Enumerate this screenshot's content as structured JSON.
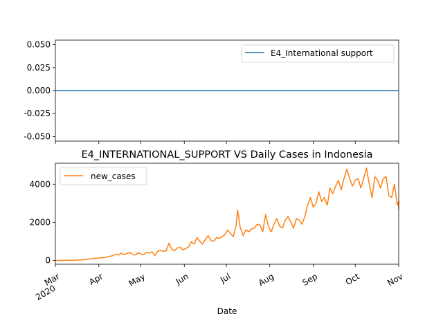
{
  "chart_data": [
    {
      "type": "line",
      "title": "",
      "xlabel": "",
      "ylabel": "",
      "ylim": [
        -0.055,
        0.055
      ],
      "yticks": [
        "0.050",
        "0.025",
        "0.000",
        "-0.025",
        "-0.050"
      ],
      "ytick_values": [
        0.05,
        0.025,
        0.0,
        -0.025,
        -0.05
      ],
      "legend_position": "upper right",
      "series": [
        {
          "name": "E4_International support",
          "color": "#1f77b4",
          "constant_value": 0.0
        }
      ]
    },
    {
      "type": "line",
      "title": "E4_INTERNATIONAL_SUPPORT VS Daily Cases in Indonesia",
      "xlabel": "Date",
      "ylabel": "",
      "ylim": [
        -200,
        5100
      ],
      "yticks": [
        "0",
        "2000",
        "4000"
      ],
      "ytick_values": [
        0,
        2000,
        4000
      ],
      "xlim": [
        "2020-03-01",
        "2020-11-01"
      ],
      "xticks": [
        {
          "date": "2020-03-01",
          "label": "Mar",
          "sublabel": "2020"
        },
        {
          "date": "2020-04-01",
          "label": "Apr"
        },
        {
          "date": "2020-05-01",
          "label": "May"
        },
        {
          "date": "2020-06-01",
          "label": "Jun"
        },
        {
          "date": "2020-07-01",
          "label": "Jul"
        },
        {
          "date": "2020-08-01",
          "label": "Aug"
        },
        {
          "date": "2020-09-01",
          "label": "Sep"
        },
        {
          "date": "2020-10-01",
          "label": "Oct"
        },
        {
          "date": "2020-11-01",
          "label": "Nov"
        }
      ],
      "legend_position": "upper left",
      "series": [
        {
          "name": "new_cases",
          "color": "#ff7f0e",
          "points": [
            [
              "2020-03-01",
              0
            ],
            [
              "2020-03-10",
              2
            ],
            [
              "2020-03-16",
              15
            ],
            [
              "2020-03-20",
              30
            ],
            [
              "2020-03-25",
              70
            ],
            [
              "2020-03-29",
              110
            ],
            [
              "2020-04-02",
              130
            ],
            [
              "2020-04-05",
              150
            ],
            [
              "2020-04-08",
              200
            ],
            [
              "2020-04-11",
              250
            ],
            [
              "2020-04-13",
              330
            ],
            [
              "2020-04-15",
              280
            ],
            [
              "2020-04-17",
              380
            ],
            [
              "2020-04-19",
              300
            ],
            [
              "2020-04-21",
              360
            ],
            [
              "2020-04-23",
              420
            ],
            [
              "2020-04-25",
              320
            ],
            [
              "2020-04-27",
              280
            ],
            [
              "2020-04-29",
              400
            ],
            [
              "2020-05-01",
              340
            ],
            [
              "2020-05-03",
              300
            ],
            [
              "2020-05-05",
              420
            ],
            [
              "2020-05-07",
              380
            ],
            [
              "2020-05-09",
              450
            ],
            [
              "2020-05-11",
              250
            ],
            [
              "2020-05-13",
              480
            ],
            [
              "2020-05-15",
              520
            ],
            [
              "2020-05-17",
              480
            ],
            [
              "2020-05-19",
              500
            ],
            [
              "2020-05-21",
              900
            ],
            [
              "2020-05-23",
              600
            ],
            [
              "2020-05-25",
              500
            ],
            [
              "2020-05-27",
              650
            ],
            [
              "2020-05-29",
              700
            ],
            [
              "2020-05-31",
              550
            ],
            [
              "2020-06-02",
              620
            ],
            [
              "2020-06-04",
              700
            ],
            [
              "2020-06-06",
              980
            ],
            [
              "2020-06-08",
              850
            ],
            [
              "2020-06-10",
              1200
            ],
            [
              "2020-06-12",
              1000
            ],
            [
              "2020-06-14",
              860
            ],
            [
              "2020-06-16",
              1100
            ],
            [
              "2020-06-18",
              1300
            ],
            [
              "2020-06-20",
              1050
            ],
            [
              "2020-06-22",
              1000
            ],
            [
              "2020-06-24",
              1200
            ],
            [
              "2020-06-26",
              1150
            ],
            [
              "2020-06-28",
              1250
            ],
            [
              "2020-06-30",
              1350
            ],
            [
              "2020-07-02",
              1600
            ],
            [
              "2020-07-04",
              1400
            ],
            [
              "2020-07-06",
              1250
            ],
            [
              "2020-07-08",
              1850
            ],
            [
              "2020-07-09",
              2650
            ],
            [
              "2020-07-11",
              1700
            ],
            [
              "2020-07-13",
              1300
            ],
            [
              "2020-07-15",
              1600
            ],
            [
              "2020-07-17",
              1500
            ],
            [
              "2020-07-19",
              1650
            ],
            [
              "2020-07-21",
              1700
            ],
            [
              "2020-07-23",
              1900
            ],
            [
              "2020-07-25",
              1850
            ],
            [
              "2020-07-27",
              1500
            ],
            [
              "2020-07-29",
              2400
            ],
            [
              "2020-07-31",
              1800
            ],
            [
              "2020-08-02",
              1500
            ],
            [
              "2020-08-04",
              1900
            ],
            [
              "2020-08-06",
              2200
            ],
            [
              "2020-08-08",
              1800
            ],
            [
              "2020-08-10",
              1700
            ],
            [
              "2020-08-12",
              2100
            ],
            [
              "2020-08-14",
              2300
            ],
            [
              "2020-08-16",
              2000
            ],
            [
              "2020-08-18",
              1700
            ],
            [
              "2020-08-20",
              2200
            ],
            [
              "2020-08-22",
              2100
            ],
            [
              "2020-08-24",
              1900
            ],
            [
              "2020-08-26",
              2300
            ],
            [
              "2020-08-28",
              2900
            ],
            [
              "2020-08-30",
              3300
            ],
            [
              "2020-09-01",
              2800
            ],
            [
              "2020-09-03",
              3000
            ],
            [
              "2020-09-05",
              3600
            ],
            [
              "2020-09-07",
              3100
            ],
            [
              "2020-09-09",
              3300
            ],
            [
              "2020-09-11",
              2900
            ],
            [
              "2020-09-13",
              3800
            ],
            [
              "2020-09-15",
              3500
            ],
            [
              "2020-09-17",
              3900
            ],
            [
              "2020-09-19",
              4200
            ],
            [
              "2020-09-21",
              3700
            ],
            [
              "2020-09-23",
              4300
            ],
            [
              "2020-09-25",
              4800
            ],
            [
              "2020-09-27",
              4300
            ],
            [
              "2020-09-29",
              3900
            ],
            [
              "2020-10-01",
              4200
            ],
            [
              "2020-10-03",
              4300
            ],
            [
              "2020-10-05",
              3800
            ],
            [
              "2020-10-07",
              4300
            ],
            [
              "2020-10-09",
              4850
            ],
            [
              "2020-10-11",
              4000
            ],
            [
              "2020-10-13",
              3300
            ],
            [
              "2020-10-15",
              4400
            ],
            [
              "2020-10-17",
              4200
            ],
            [
              "2020-10-19",
              3800
            ],
            [
              "2020-10-21",
              4300
            ],
            [
              "2020-10-23",
              4400
            ],
            [
              "2020-10-25",
              3400
            ],
            [
              "2020-10-27",
              3300
            ],
            [
              "2020-10-29",
              4000
            ],
            [
              "2020-10-31",
              2900
            ],
            [
              "2020-11-01",
              3100
            ],
            [
              "2020-11-02",
              2700
            ]
          ]
        }
      ]
    }
  ]
}
